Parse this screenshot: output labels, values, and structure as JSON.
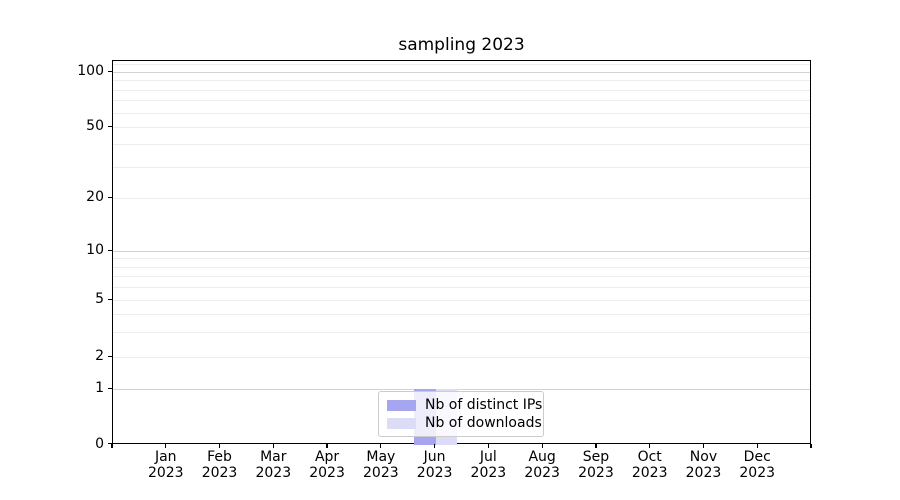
{
  "title": "sampling 2023",
  "chart_data": {
    "type": "bar",
    "title": "sampling 2023",
    "categories": [
      {
        "line1": "Jan",
        "line2": "2023"
      },
      {
        "line1": "Feb",
        "line2": "2023"
      },
      {
        "line1": "Mar",
        "line2": "2023"
      },
      {
        "line1": "Apr",
        "line2": "2023"
      },
      {
        "line1": "May",
        "line2": "2023"
      },
      {
        "line1": "Jun",
        "line2": "2023"
      },
      {
        "line1": "Jul",
        "line2": "2023"
      },
      {
        "line1": "Aug",
        "line2": "2023"
      },
      {
        "line1": "Sep",
        "line2": "2023"
      },
      {
        "line1": "Oct",
        "line2": "2023"
      },
      {
        "line1": "Nov",
        "line2": "2023"
      },
      {
        "line1": "Dec",
        "line2": "2023"
      }
    ],
    "series": [
      {
        "name": "Nb of distinct IPs",
        "color": "#a5a5f0",
        "values": [
          0,
          0,
          0,
          0,
          0,
          1,
          0,
          0,
          0,
          0,
          0,
          0
        ]
      },
      {
        "name": "Nb of downloads",
        "color": "#dcdcf7",
        "values": [
          0,
          0,
          0,
          0,
          0,
          1,
          0,
          0,
          0,
          0,
          0,
          0
        ]
      }
    ],
    "yscale": "log-like with linear segment below 1",
    "yticks": [
      0,
      1,
      2,
      5,
      10,
      20,
      50,
      100
    ],
    "y_minor_gridlines": [
      3,
      4,
      6,
      7,
      8,
      9,
      30,
      40,
      60,
      70,
      80,
      90,
      110
    ],
    "ylim": [
      0,
      115
    ],
    "xlabel": "",
    "ylabel": "",
    "grid": true,
    "legend_position": "lower center"
  },
  "colors": {
    "distinct_ips": "#a5a5f0",
    "downloads": "#dcdcf7",
    "grid_major": "#d2d2d2",
    "grid_minor": "#ededed",
    "axis": "#000000"
  }
}
